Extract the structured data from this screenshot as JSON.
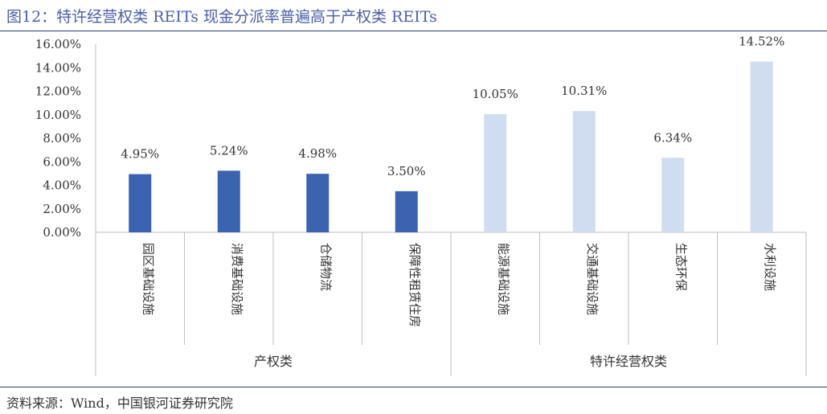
{
  "figure": {
    "title": "图12：特许经营权类 REITs 现金分派率普遍高于产权类 REITs",
    "source": "资料来源：Wind，中国银河证券研究院"
  },
  "colors": {
    "title": "#4a5fa8",
    "rule": "#2b3a7a",
    "series_property": "#3b63b0",
    "series_franchise": "#d0dcf0",
    "axis": "#bfbfbf",
    "text": "#333333"
  },
  "chart_data": {
    "type": "bar",
    "categories": [
      "园区基础设施",
      "消费基础设施",
      "仓储物流",
      "保障性租赁住房",
      "能源基础设施",
      "交通基础设施",
      "生态环保",
      "水利设施"
    ],
    "values": [
      4.95,
      5.24,
      4.98,
      3.5,
      10.05,
      10.31,
      6.34,
      14.52
    ],
    "data_labels": [
      "4.95%",
      "5.24%",
      "4.98%",
      "3.50%",
      "10.05%",
      "10.31%",
      "6.34%",
      "14.52%"
    ],
    "groups": [
      {
        "label": "产权类",
        "start": 0,
        "end": 3,
        "color": "#3b63b0"
      },
      {
        "label": "特许经营权类",
        "start": 4,
        "end": 7,
        "color": "#d0dcf0"
      }
    ],
    "ylim": [
      0,
      16
    ],
    "yticks": [
      "0.00%",
      "2.00%",
      "4.00%",
      "6.00%",
      "8.00%",
      "10.00%",
      "12.00%",
      "14.00%",
      "16.00%"
    ],
    "grid": false,
    "legend": "none"
  }
}
